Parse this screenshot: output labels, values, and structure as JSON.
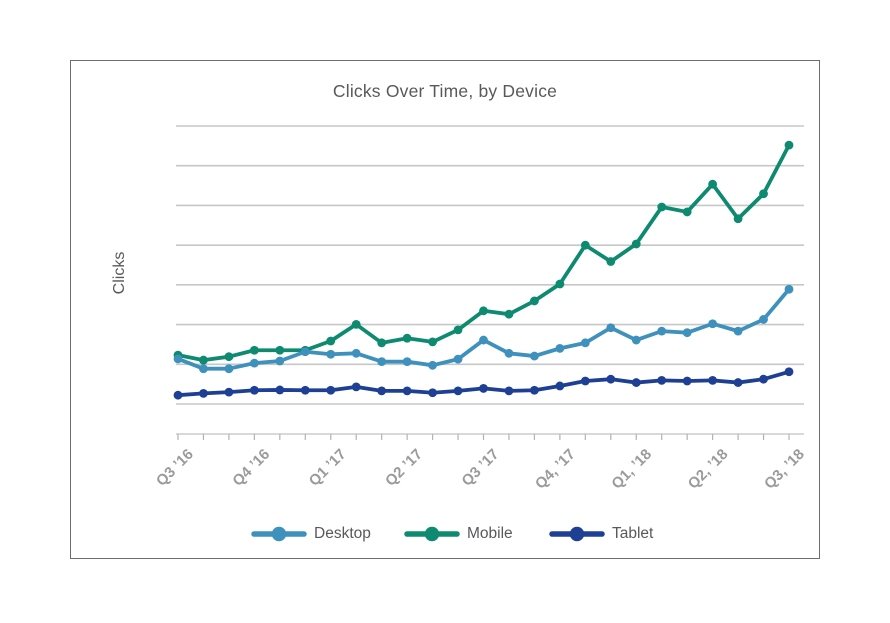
{
  "chart_card": {
    "border_color": "#6d6d6d",
    "background": "#ffffff"
  },
  "chart_data": {
    "type": "line",
    "title": "Clicks Over Time, by Device",
    "ylabel": "Clicks",
    "xlabel": "",
    "x_tick_labels": [
      "Q3 ’16",
      "Q4 ’16",
      "Q1 ’17",
      "Q2 ’17",
      "Q3 ’17",
      "Q4, ’17",
      "Q1, ’18",
      "Q2, ’18",
      "Q3, ’18"
    ],
    "points_per_tick_label": 3,
    "n_points": 25,
    "ylim": [
      0,
      107
    ],
    "y_tick_labels_visible": false,
    "gridline_count": 8,
    "grid_on": true,
    "grid_color": "#c7c7c7",
    "axis_color": "#b3b3b3",
    "tick_label_color": "#9b9b9b",
    "text_color": "#58595b",
    "legend_position": "bottom",
    "series": [
      {
        "name": "Desktop",
        "color": "#3e91bc",
        "values": [
          24.4,
          21.2,
          21.2,
          23.0,
          23.7,
          26.7,
          25.9,
          26.2,
          23.5,
          23.5,
          22.3,
          24.3,
          30.5,
          26.2,
          25.3,
          27.8,
          29.6,
          34.5,
          30.5,
          33.4,
          32.9,
          35.8,
          33.4,
          37.2,
          47.0
        ]
      },
      {
        "name": "Mobile",
        "color": "#0e8a70",
        "values": [
          25.6,
          24.0,
          25.1,
          27.2,
          27.2,
          27.2,
          30.2,
          35.6,
          29.6,
          31.1,
          29.9,
          33.8,
          40.0,
          38.9,
          43.2,
          48.7,
          61.3,
          56.0,
          61.7,
          73.7,
          72.1,
          81.1,
          69.9,
          78.0,
          93.8
        ]
      },
      {
        "name": "Tablet",
        "color": "#1e4094",
        "values": [
          12.6,
          13.2,
          13.6,
          14.2,
          14.3,
          14.2,
          14.2,
          15.3,
          14.0,
          14.0,
          13.4,
          14.0,
          14.8,
          14.0,
          14.2,
          15.6,
          17.2,
          17.8,
          16.7,
          17.4,
          17.2,
          17.4,
          16.7,
          17.8,
          20.2
        ]
      }
    ],
    "draw_order": [
      1,
      0,
      2
    ]
  }
}
